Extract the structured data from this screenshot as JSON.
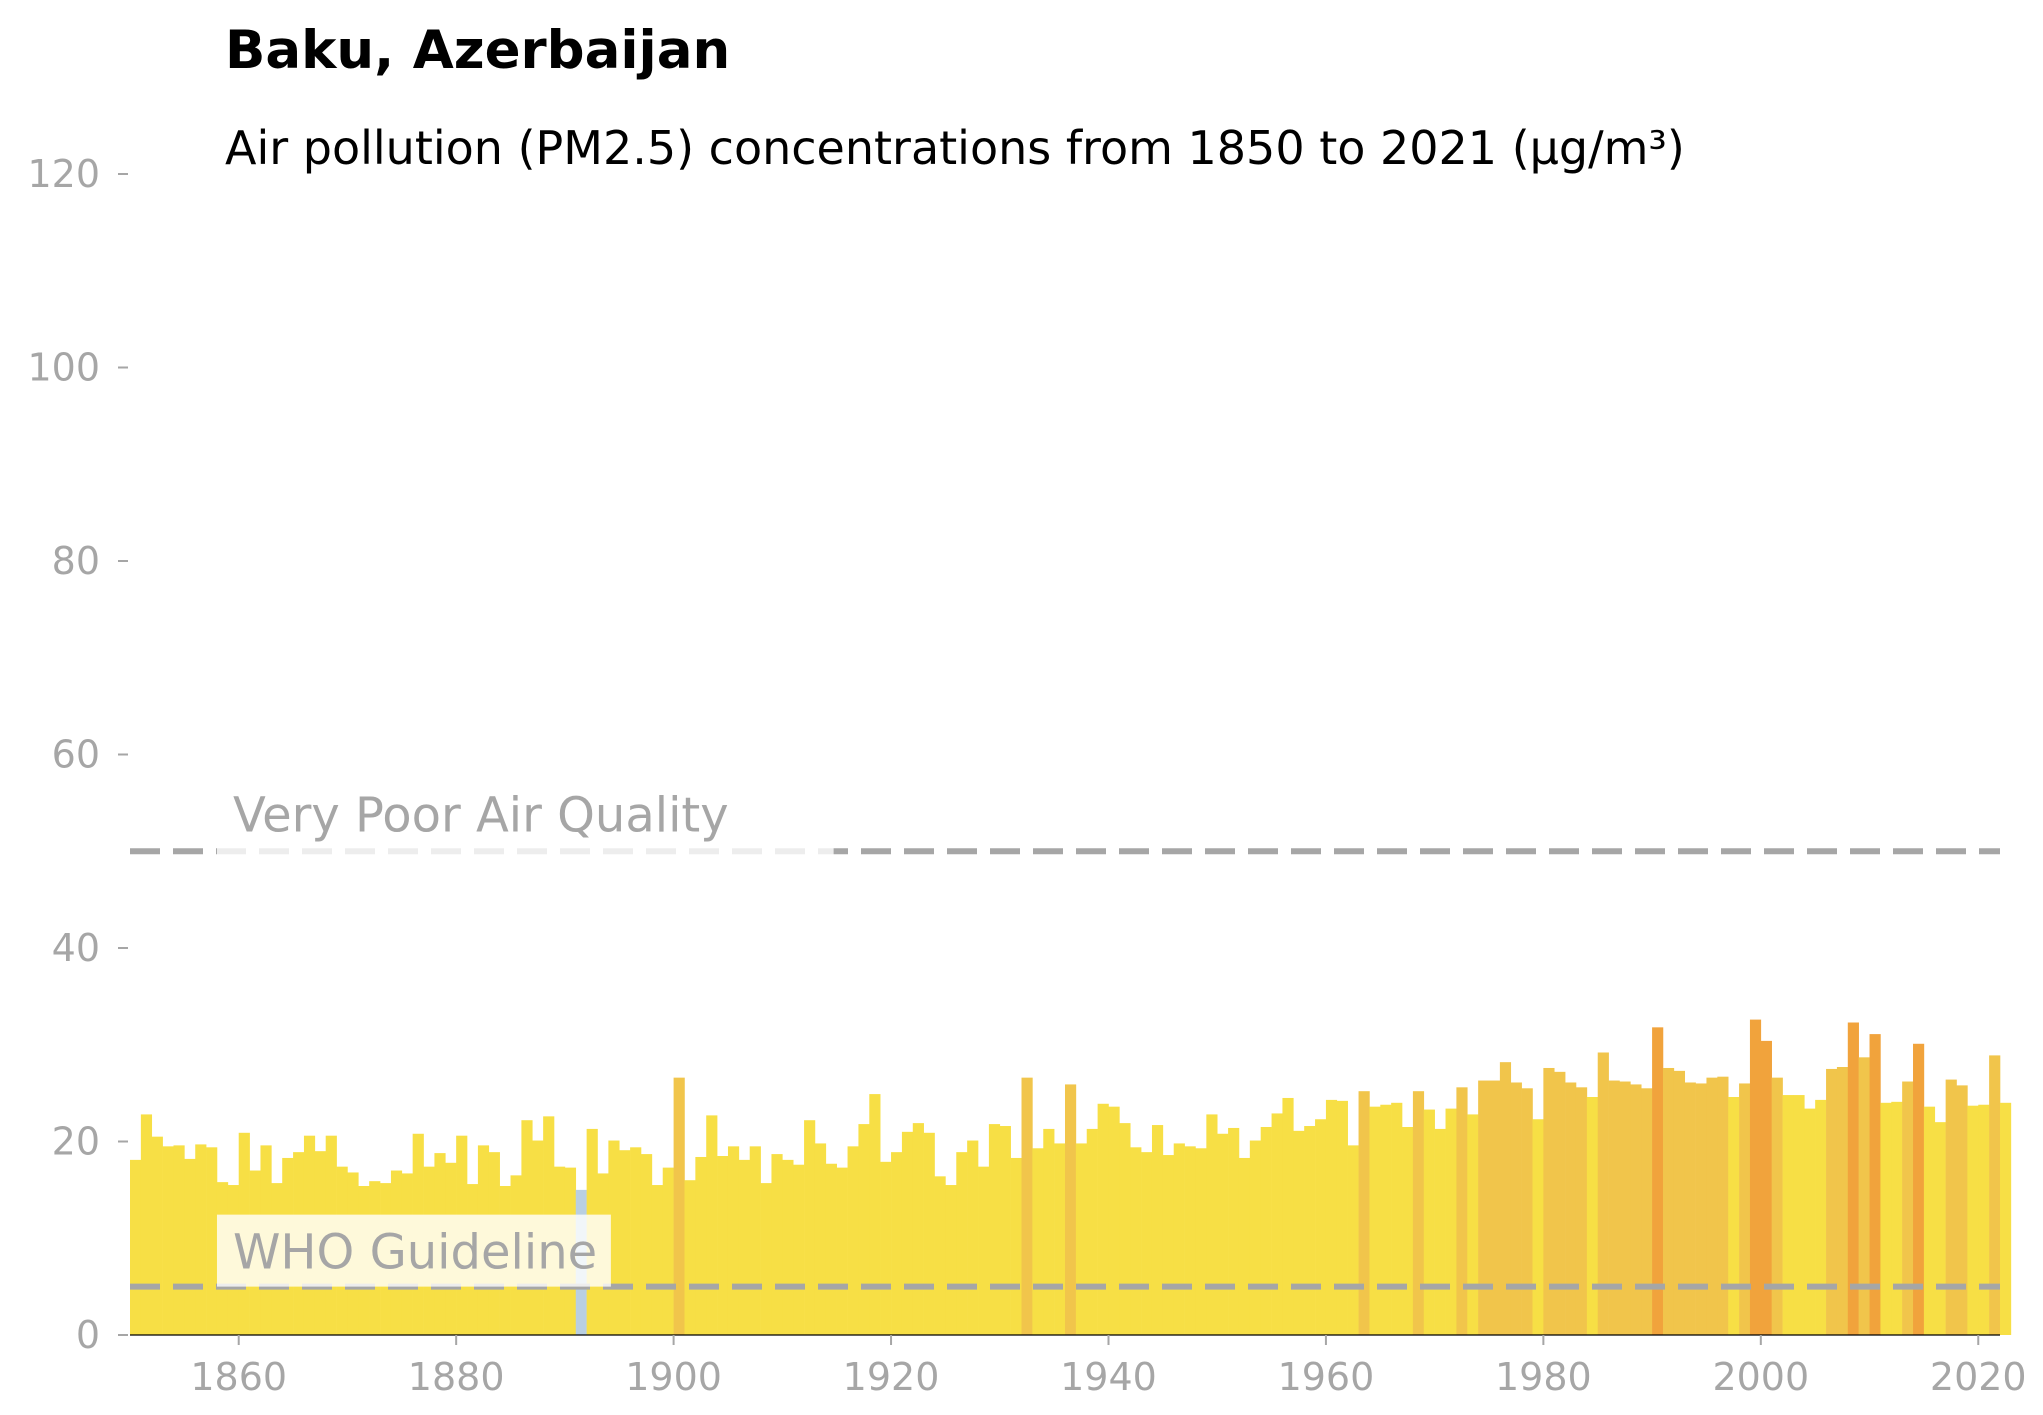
{
  "chart_data": {
    "type": "bar",
    "title": "Baku, Azerbaijan",
    "subtitle": "Air pollution (PM2.5) concentrations from 1850 to 2021 (µg/m³)",
    "xlabel": "",
    "ylabel": "",
    "xlim": [
      1850,
      2022
    ],
    "ylim": [
      0,
      120
    ],
    "xticks": [
      1860,
      1880,
      1900,
      1920,
      1940,
      1960,
      1980,
      2000,
      2020
    ],
    "yticks": [
      0,
      20,
      40,
      60,
      80,
      100,
      120
    ],
    "grid": false,
    "x_start": 1850,
    "values": [
      18.1,
      22.8,
      20.5,
      19.5,
      19.6,
      18.2,
      19.7,
      19.4,
      15.8,
      15.5,
      20.9,
      17.0,
      19.6,
      15.7,
      18.3,
      18.9,
      20.6,
      19.0,
      20.6,
      17.4,
      16.8,
      15.4,
      15.9,
      15.7,
      17.0,
      16.7,
      20.8,
      17.4,
      18.8,
      17.8,
      20.6,
      15.6,
      19.6,
      18.9,
      15.4,
      16.5,
      22.2,
      20.1,
      22.6,
      17.4,
      17.3,
      15.0,
      21.3,
      16.7,
      20.1,
      19.1,
      19.4,
      18.7,
      15.5,
      17.3,
      26.6,
      16.0,
      18.4,
      22.7,
      18.5,
      19.5,
      18.1,
      19.5,
      15.7,
      18.7,
      18.1,
      17.6,
      22.2,
      19.8,
      17.7,
      17.3,
      19.5,
      21.8,
      24.9,
      17.9,
      18.9,
      21.0,
      21.9,
      20.9,
      16.4,
      15.5,
      18.9,
      20.1,
      17.4,
      21.8,
      21.6,
      18.3,
      26.6,
      19.3,
      21.3,
      19.8,
      25.9,
      19.8,
      21.3,
      23.9,
      23.6,
      21.9,
      19.4,
      18.9,
      21.7,
      18.6,
      19.8,
      19.5,
      19.3,
      22.8,
      20.8,
      21.4,
      18.3,
      20.1,
      21.5,
      22.9,
      24.5,
      21.1,
      21.6,
      22.3,
      24.3,
      24.2,
      19.6,
      25.2,
      23.6,
      23.8,
      24.0,
      21.5,
      25.2,
      23.3,
      21.3,
      23.4,
      25.6,
      22.8,
      26.3,
      26.3,
      28.2,
      26.1,
      25.5,
      22.3,
      27.6,
      27.2,
      26.1,
      25.6,
      24.6,
      29.2,
      26.3,
      26.2,
      25.9,
      25.5,
      31.8,
      27.6,
      27.3,
      26.1,
      26.0,
      26.6,
      26.7,
      24.6,
      26.0,
      32.6,
      30.4,
      26.6,
      24.8,
      24.8,
      23.4,
      24.3,
      27.5,
      27.7,
      32.3,
      28.7,
      31.1,
      24.0,
      24.1,
      26.2,
      30.1,
      23.6,
      22.0,
      26.4,
      25.8,
      23.7,
      23.8,
      28.9,
      24.0
    ],
    "color_thresholds": [
      {
        "max": 15,
        "color": "#b9cfe1"
      },
      {
        "max": 25,
        "color": "#f7df45"
      },
      {
        "max": 30,
        "color": "#f1c54b"
      },
      {
        "max": 50,
        "color": "#f1a33c"
      }
    ],
    "reference_lines": [
      {
        "label": "WHO Guideline",
        "value": 5
      },
      {
        "label": "Very Poor Air Quality",
        "value": 50
      }
    ],
    "reference_line_color": "#a6a6a6"
  }
}
